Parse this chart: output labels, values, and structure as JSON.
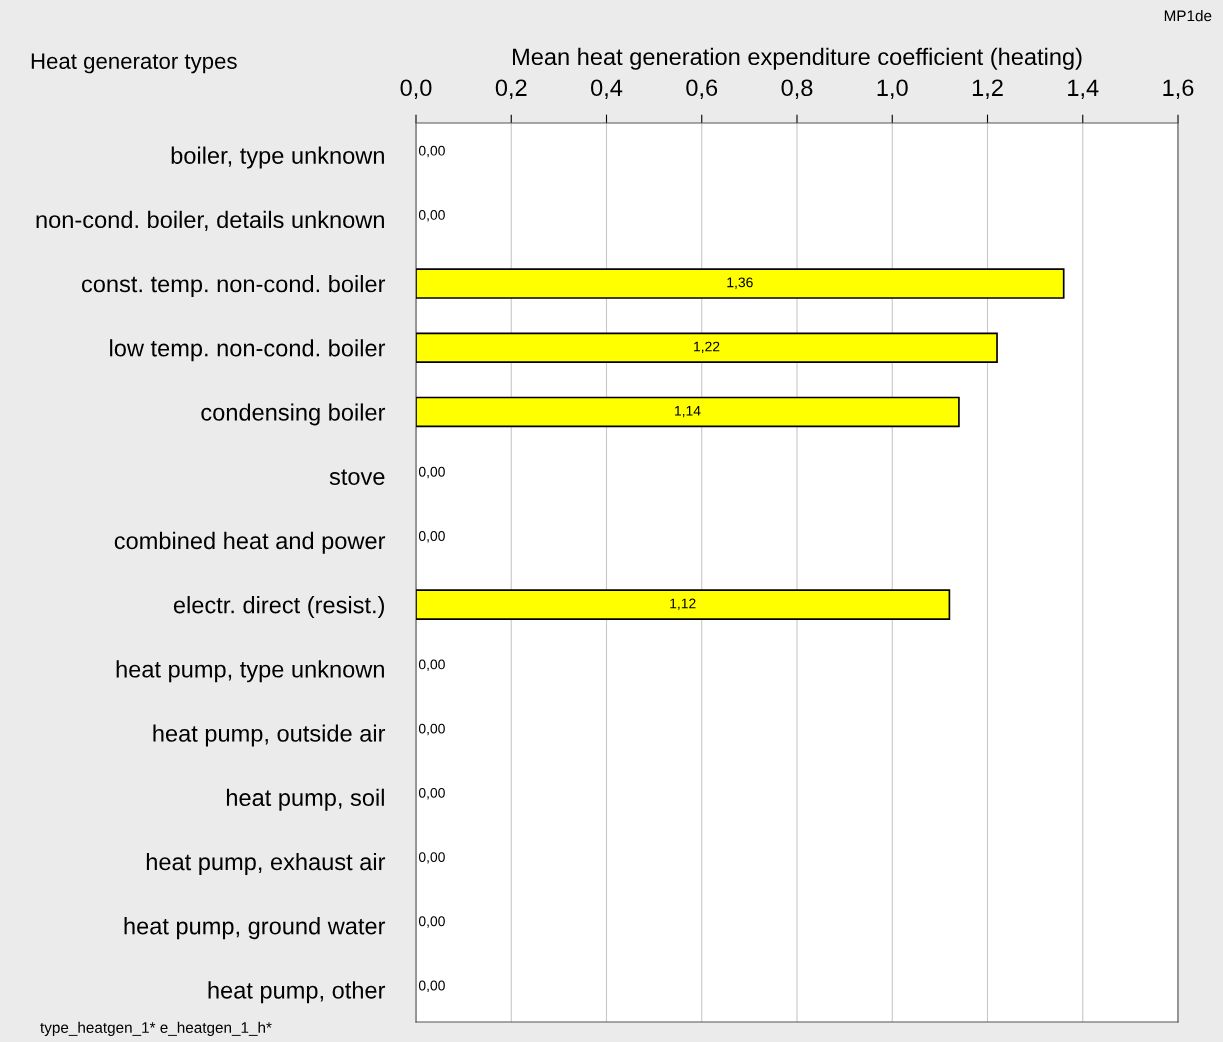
{
  "chart_data": {
    "type": "bar",
    "orientation": "horizontal",
    "xlabel": "Mean heat generation expenditure coefficient (heating)",
    "ylabel": "Heat generator types",
    "categories": [
      "boiler, type unknown",
      "non-cond. boiler, details unknown",
      "const. temp. non-cond. boiler",
      "low temp. non-cond. boiler",
      "condensing boiler",
      "stove",
      "combined heat and power",
      "electr. direct (resist.)",
      "heat pump, type unknown",
      "heat pump, outside air",
      "heat pump, soil",
      "heat pump, exhaust air",
      "heat pump, ground water",
      "heat pump, other"
    ],
    "values": [
      0,
      0,
      1.36,
      1.22,
      1.14,
      0,
      0,
      1.12,
      0,
      0,
      0,
      0,
      0,
      0
    ],
    "value_labels": [
      "0,00",
      "0,00",
      "1,36",
      "1,22",
      "1,14",
      "0,00",
      "0,00",
      "1,12",
      "0,00",
      "0,00",
      "0,00",
      "0,00",
      "0,00",
      "0,00"
    ],
    "color": "#ffff00",
    "xlim": [
      0,
      1.6
    ],
    "xticks": [
      {
        "value": 0,
        "label": "0,0"
      },
      {
        "value": 0.2,
        "label": "0,2"
      },
      {
        "value": 0.4,
        "label": "0,4"
      },
      {
        "value": 0.6,
        "label": "0,6"
      },
      {
        "value": 0.8,
        "label": "0,8"
      },
      {
        "value": 1.0,
        "label": "1,0"
      },
      {
        "value": 1.2,
        "label": "1,2"
      },
      {
        "value": 1.4,
        "label": "1,4"
      },
      {
        "value": 1.6,
        "label": "1,6"
      }
    ],
    "grid": "x",
    "annotations": [
      "MP1de",
      "type_heatgen_1* e_heatgen_1_h*"
    ]
  }
}
